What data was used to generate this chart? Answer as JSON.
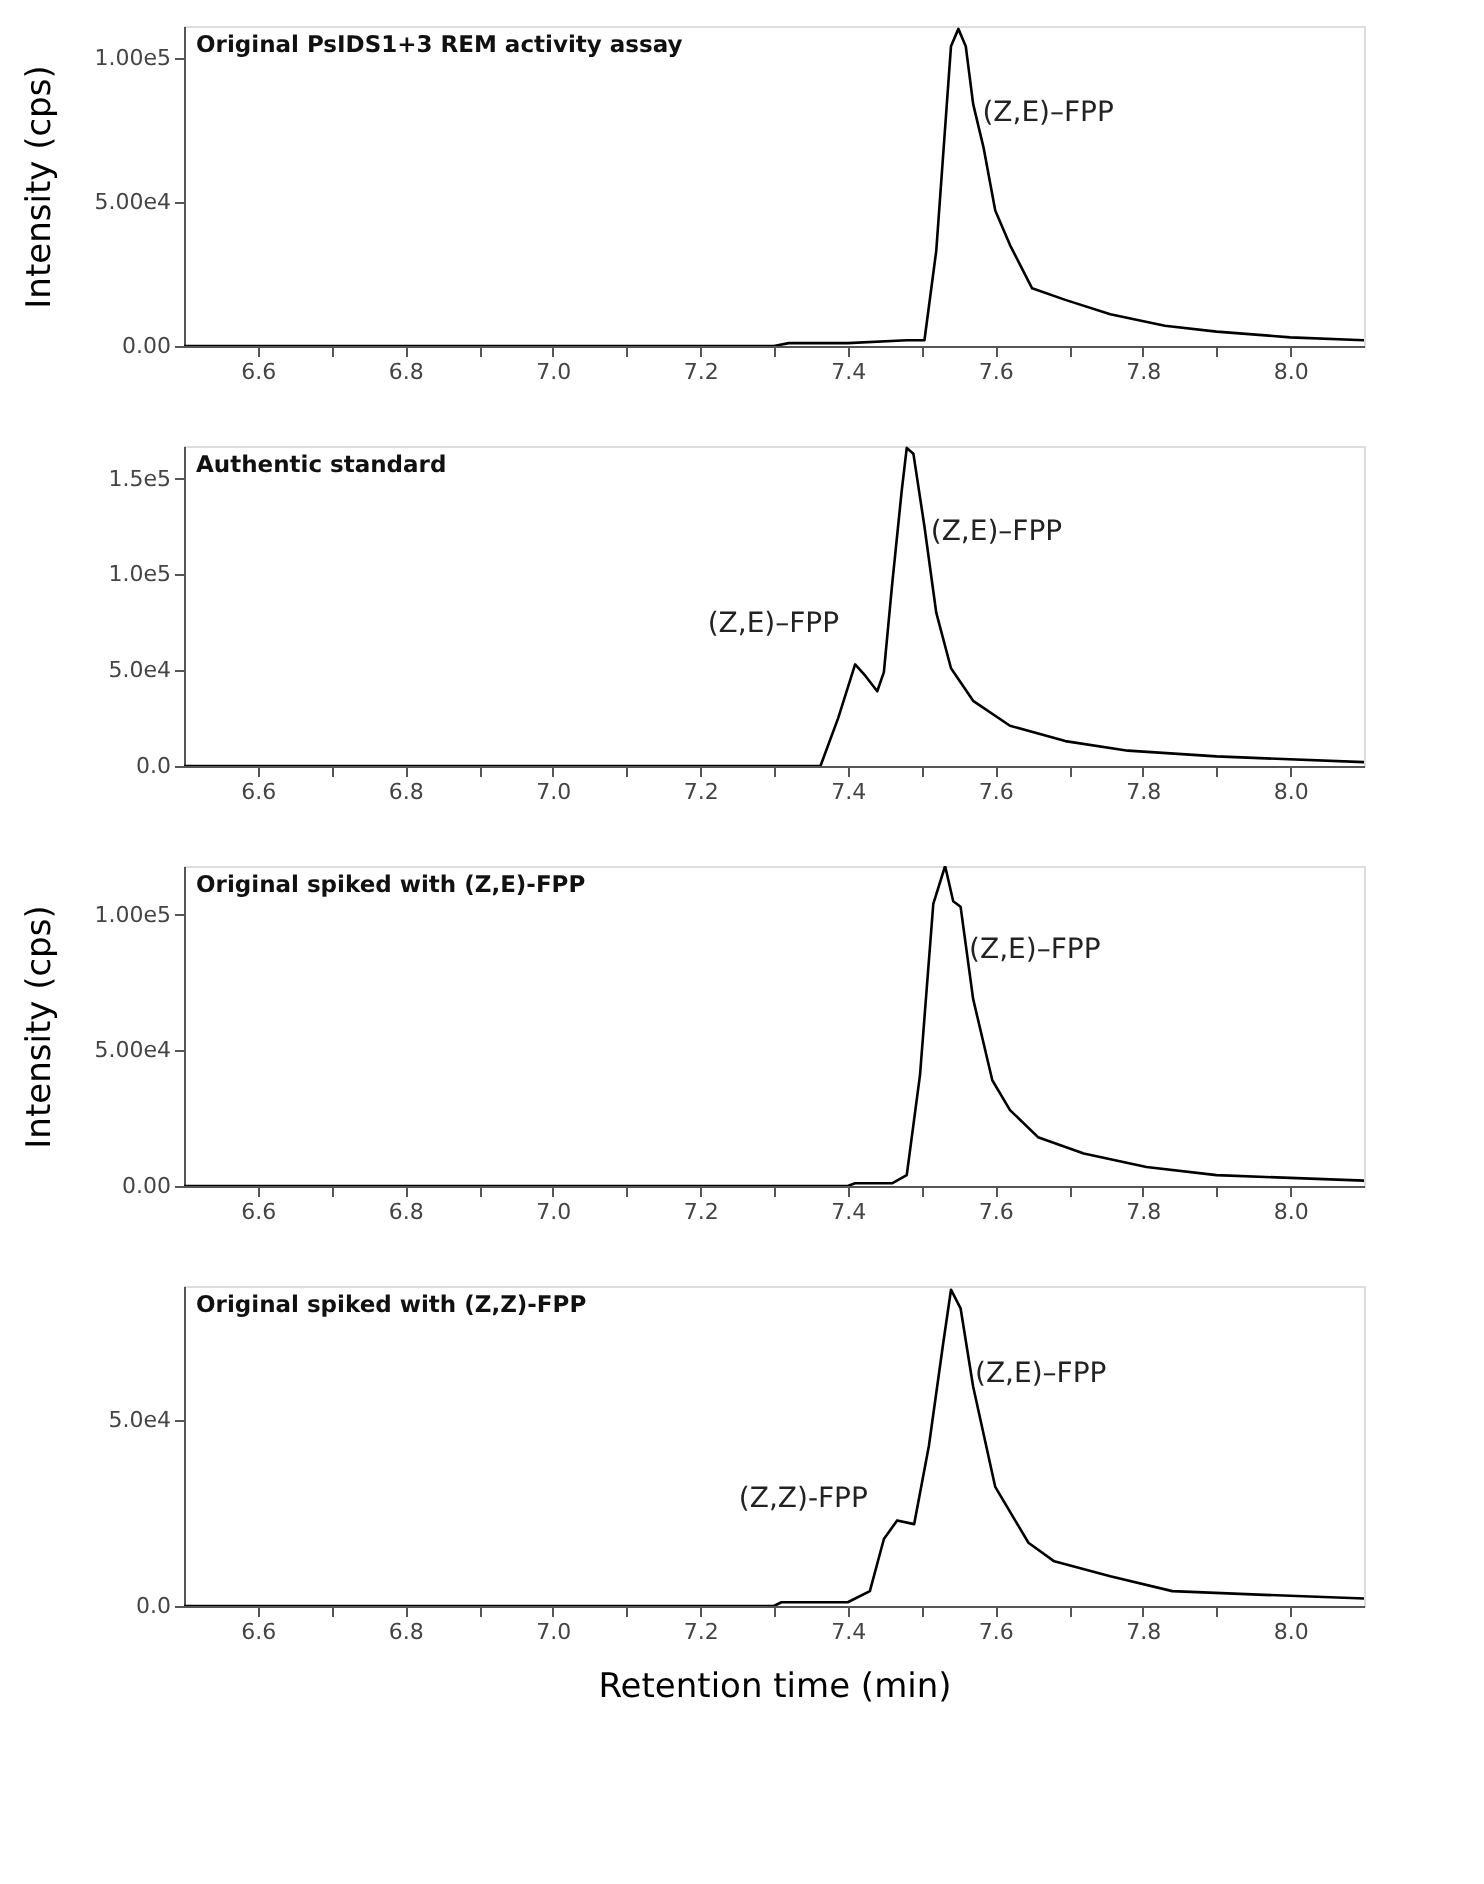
{
  "chart_data": [
    {
      "type": "line",
      "title": "Original PsIDS1+3 REM activity assay",
      "ylabel": "Intensity (cps)",
      "xlim": [
        6.5,
        8.1
      ],
      "ylim": [
        0,
        111000
      ],
      "xticks": [
        {
          "value": 6.6,
          "label": "6.6"
        },
        {
          "value": 6.7,
          "label": null
        },
        {
          "value": 6.8,
          "label": "6.8"
        },
        {
          "value": 6.9,
          "label": null
        },
        {
          "value": 7,
          "label": "7.0"
        },
        {
          "value": 7.1,
          "label": null
        },
        {
          "value": 7.2,
          "label": "7.2"
        },
        {
          "value": 7.3,
          "label": null
        },
        {
          "value": 7.4,
          "label": "7.4"
        },
        {
          "value": 7.5,
          "label": null
        },
        {
          "value": 7.6,
          "label": "7.6"
        },
        {
          "value": 7.7,
          "label": null
        },
        {
          "value": 7.8,
          "label": "7.8"
        },
        {
          "value": 7.9,
          "label": null
        },
        {
          "value": 8,
          "label": "8.0"
        }
      ],
      "yticks": [
        {
          "value": 0,
          "label": "0.00"
        },
        {
          "value": 50000,
          "label": "5.00e4"
        },
        {
          "value": 100000,
          "label": "1.00e5"
        }
      ],
      "grid": false,
      "marker": "none",
      "line_style": "solid",
      "annotations": [
        {
          "text": "(Z,E)–FPP",
          "x": 7.55,
          "y": 110000
        }
      ],
      "series": [
        {
          "color": "#000000",
          "x": [
            6.5,
            7.3,
            7.32,
            7.4,
            7.48,
            7.504,
            7.52,
            7.54,
            7.55,
            7.56,
            7.57,
            7.584,
            7.6,
            7.62,
            7.65,
            7.695,
            7.756,
            7.83,
            7.9,
            8.0,
            8.1
          ],
          "values": [
            0,
            0,
            1000,
            1000,
            2000,
            2000,
            33000,
            104000,
            110000,
            104000,
            84000,
            69000,
            47000,
            35000,
            20000,
            16000,
            11000,
            7000,
            5000,
            3000,
            2000
          ]
        }
      ]
    },
    {
      "type": "line",
      "title": "Authentic standard",
      "xlim": [
        6.5,
        8.1
      ],
      "ylim": [
        0,
        167000
      ],
      "xticks": [
        {
          "value": 6.6,
          "label": "6.6"
        },
        {
          "value": 6.7,
          "label": null
        },
        {
          "value": 6.8,
          "label": "6.8"
        },
        {
          "value": 6.9,
          "label": null
        },
        {
          "value": 7,
          "label": "7.0"
        },
        {
          "value": 7.1,
          "label": null
        },
        {
          "value": 7.2,
          "label": "7.2"
        },
        {
          "value": 7.3,
          "label": null
        },
        {
          "value": 7.4,
          "label": "7.4"
        },
        {
          "value": 7.5,
          "label": null
        },
        {
          "value": 7.6,
          "label": "7.6"
        },
        {
          "value": 7.7,
          "label": null
        },
        {
          "value": 7.8,
          "label": "7.8"
        },
        {
          "value": 7.9,
          "label": null
        },
        {
          "value": 8,
          "label": "8.0"
        }
      ],
      "yticks": [
        {
          "value": 0,
          "label": "0.0"
        },
        {
          "value": 50000,
          "label": "5.0e4"
        },
        {
          "value": 100000,
          "label": "1.0e5"
        },
        {
          "value": 150000,
          "label": "1.5e5"
        }
      ],
      "grid": false,
      "marker": "none",
      "line_style": "solid",
      "annotations": [
        {
          "text": "(Z,E)–FPP",
          "x": 7.41,
          "y": 53000
        },
        {
          "text": "(Z,E)–FPP",
          "x": 7.48,
          "y": 166000
        }
      ],
      "series": [
        {
          "color": "#000000",
          "x": [
            6.5,
            7.363,
            7.387,
            7.41,
            7.424,
            7.44,
            7.449,
            7.46,
            7.473,
            7.48,
            7.489,
            7.504,
            7.52,
            7.54,
            7.57,
            7.62,
            7.695,
            7.78,
            7.9,
            8.1
          ],
          "values": [
            0,
            0,
            25000,
            53000,
            47000,
            39000,
            49000,
            94000,
            143000,
            166000,
            163000,
            125000,
            80000,
            51000,
            34000,
            21000,
            13000,
            8000,
            5000,
            2000
          ]
        }
      ]
    },
    {
      "type": "line",
      "title": "Original spiked with (Z,E)-FPP",
      "ylabel": "Intensity (cps)",
      "xlim": [
        6.5,
        8.1
      ],
      "ylim": [
        0,
        118000
      ],
      "xticks": [
        {
          "value": 6.6,
          "label": "6.6"
        },
        {
          "value": 6.7,
          "label": null
        },
        {
          "value": 6.8,
          "label": "6.8"
        },
        {
          "value": 6.9,
          "label": null
        },
        {
          "value": 7,
          "label": "7.0"
        },
        {
          "value": 7.1,
          "label": null
        },
        {
          "value": 7.2,
          "label": "7.2"
        },
        {
          "value": 7.3,
          "label": null
        },
        {
          "value": 7.4,
          "label": "7.4"
        },
        {
          "value": 7.5,
          "label": null
        },
        {
          "value": 7.6,
          "label": "7.6"
        },
        {
          "value": 7.7,
          "label": null
        },
        {
          "value": 7.8,
          "label": "7.8"
        },
        {
          "value": 7.9,
          "label": null
        },
        {
          "value": 8,
          "label": "8.0"
        }
      ],
      "yticks": [
        {
          "value": 0,
          "label": "0.00"
        },
        {
          "value": 50000,
          "label": "5.00e4"
        },
        {
          "value": 100000,
          "label": "1.00e5"
        }
      ],
      "grid": false,
      "marker": "none",
      "line_style": "solid",
      "annotations": [
        {
          "text": "(Z,E)–FPP",
          "x": 7.532,
          "y": 118000
        }
      ],
      "series": [
        {
          "color": "#000000",
          "x": [
            6.5,
            7.4,
            7.41,
            7.46,
            7.48,
            7.498,
            7.516,
            7.532,
            7.543,
            7.553,
            7.57,
            7.596,
            7.62,
            7.658,
            7.72,
            7.805,
            7.9,
            8.1
          ],
          "values": [
            0,
            0,
            1000,
            1000,
            4000,
            41000,
            104000,
            118000,
            105000,
            103000,
            69000,
            39000,
            28000,
            18000,
            12000,
            7000,
            4000,
            2000
          ]
        }
      ]
    },
    {
      "type": "line",
      "title": "Original spiked with (Z,Z)-FPP",
      "xlabel": "Retention time (min)",
      "xlim": [
        6.5,
        8.1
      ],
      "ylim": [
        0,
        86000
      ],
      "xticks": [
        {
          "value": 6.6,
          "label": "6.6"
        },
        {
          "value": 6.7,
          "label": null
        },
        {
          "value": 6.8,
          "label": "6.8"
        },
        {
          "value": 6.9,
          "label": null
        },
        {
          "value": 7,
          "label": "7.0"
        },
        {
          "value": 7.1,
          "label": null
        },
        {
          "value": 7.2,
          "label": "7.2"
        },
        {
          "value": 7.3,
          "label": null
        },
        {
          "value": 7.4,
          "label": "7.4"
        },
        {
          "value": 7.5,
          "label": null
        },
        {
          "value": 7.6,
          "label": "7.6"
        },
        {
          "value": 7.7,
          "label": null
        },
        {
          "value": 7.8,
          "label": "7.8"
        },
        {
          "value": 7.9,
          "label": null
        },
        {
          "value": 8,
          "label": "8.0"
        }
      ],
      "yticks": [
        {
          "value": 0,
          "label": "0.0"
        },
        {
          "value": 50000,
          "label": "5.0e4"
        }
      ],
      "grid": false,
      "marker": "none",
      "line_style": "solid",
      "annotations": [
        {
          "text": "(Z,Z)-FPP",
          "x": 7.449,
          "y": 18000
        },
        {
          "text": "(Z,E)–FPP",
          "x": 7.54,
          "y": 85000
        }
      ],
      "series": [
        {
          "color": "#000000",
          "x": [
            6.5,
            7.3,
            7.31,
            7.4,
            7.43,
            7.449,
            7.467,
            7.49,
            7.51,
            7.529,
            7.54,
            7.553,
            7.57,
            7.6,
            7.645,
            7.68,
            7.756,
            7.84,
            7.965,
            8.1
          ],
          "values": [
            0,
            0,
            1000,
            1000,
            4000,
            18000,
            23000,
            22000,
            43000,
            70000,
            85000,
            80000,
            59000,
            32000,
            17000,
            12000,
            8000,
            4000,
            3000,
            2000
          ]
        }
      ]
    }
  ]
}
